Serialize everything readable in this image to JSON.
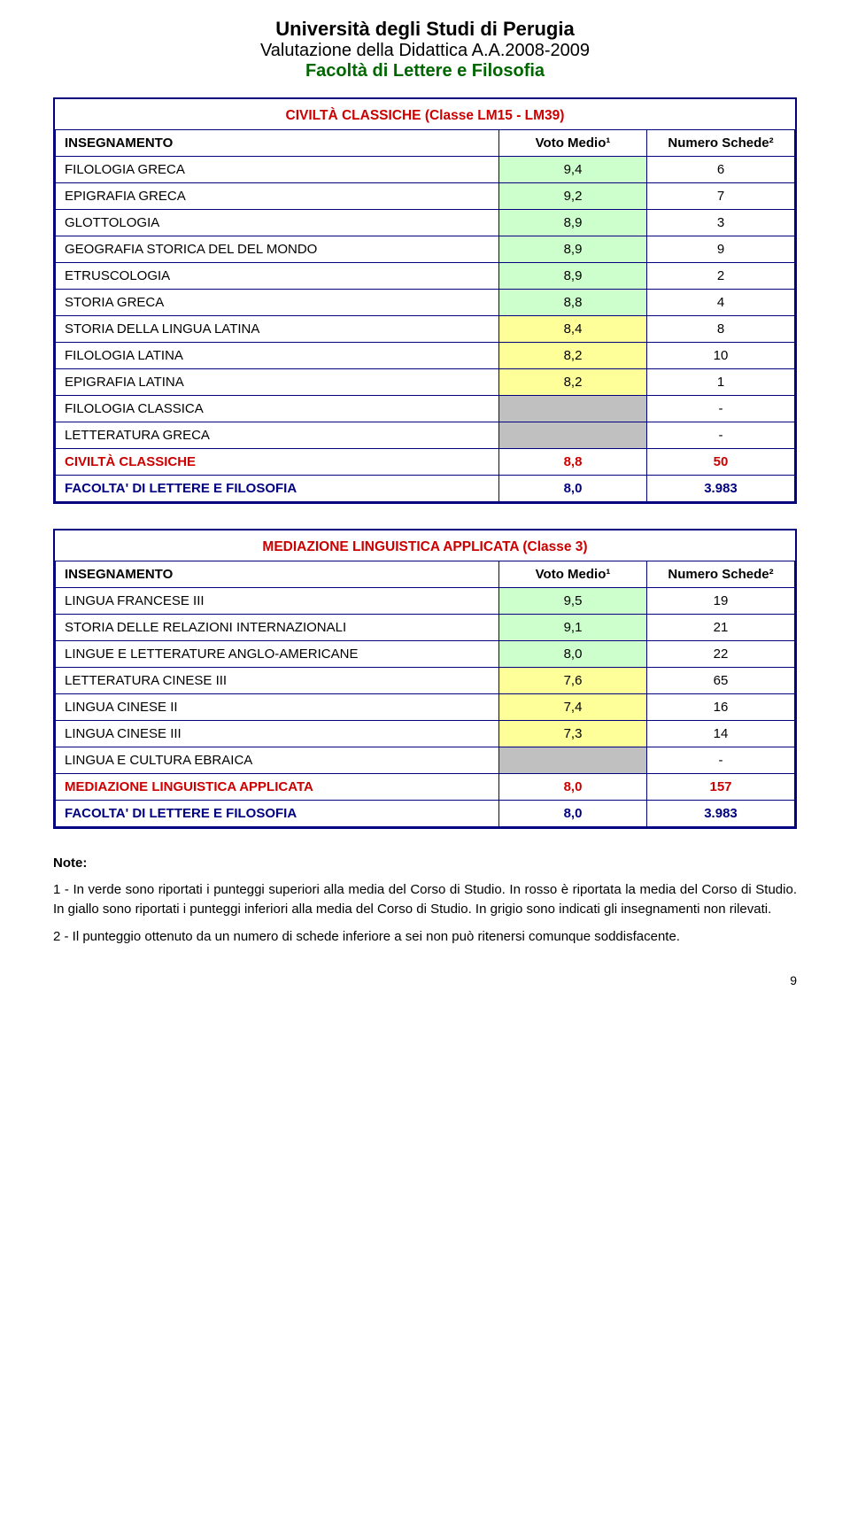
{
  "header": {
    "university": "Università degli Studi di Perugia",
    "evaluation": "Valutazione della Didattica A.A.2008-2009",
    "faculty": "Facoltà di Lettere e Filosofia"
  },
  "colors": {
    "green": "#ccffcc",
    "yellow": "#ffff99",
    "grey": "#c0c0c0",
    "border": "#000080",
    "course_red": "#cc0000",
    "faculty_blue": "#000080"
  },
  "col_headers": {
    "insegnamento": "INSEGNAMENTO",
    "voto": "Voto Medio¹",
    "numero": "Numero Schede²"
  },
  "table1": {
    "title": "CIVILTÀ CLASSICHE (Classe LM15 - LM39)",
    "rows": [
      {
        "name": "FILOLOGIA GRECA",
        "val": "9,4",
        "cnt": "6",
        "bg": "green"
      },
      {
        "name": "EPIGRAFIA GRECA",
        "val": "9,2",
        "cnt": "7",
        "bg": "green"
      },
      {
        "name": "GLOTTOLOGIA",
        "val": "8,9",
        "cnt": "3",
        "bg": "green"
      },
      {
        "name": "GEOGRAFIA STORICA DEL DEL MONDO",
        "val": "8,9",
        "cnt": "9",
        "bg": "green"
      },
      {
        "name": "ETRUSCOLOGIA",
        "val": "8,9",
        "cnt": "2",
        "bg": "green"
      },
      {
        "name": "STORIA GRECA",
        "val": "8,8",
        "cnt": "4",
        "bg": "green"
      },
      {
        "name": "STORIA DELLA LINGUA LATINA",
        "val": "8,4",
        "cnt": "8",
        "bg": "yellow"
      },
      {
        "name": "FILOLOGIA LATINA",
        "val": "8,2",
        "cnt": "10",
        "bg": "yellow"
      },
      {
        "name": "EPIGRAFIA LATINA",
        "val": "8,2",
        "cnt": "1",
        "bg": "yellow"
      },
      {
        "name": "FILOLOGIA CLASSICA",
        "val": "",
        "cnt": "-",
        "bg": "grey"
      },
      {
        "name": "LETTERATURA GRECA",
        "val": "",
        "cnt": "-",
        "bg": "grey"
      }
    ],
    "course_summary": {
      "name": "CIVILTÀ CLASSICHE",
      "val": "8,8",
      "cnt": "50"
    },
    "faculty_summary": {
      "name": "FACOLTA' DI LETTERE E FILOSOFIA",
      "val": "8,0",
      "cnt": "3.983"
    }
  },
  "table2": {
    "title": "MEDIAZIONE LINGUISTICA APPLICATA (Classe 3)",
    "rows": [
      {
        "name": "LINGUA FRANCESE III",
        "val": "9,5",
        "cnt": "19",
        "bg": "green"
      },
      {
        "name": "STORIA DELLE RELAZIONI INTERNAZIONALI",
        "val": "9,1",
        "cnt": "21",
        "bg": "green"
      },
      {
        "name": "LINGUE E LETTERATURE ANGLO-AMERICANE",
        "val": "8,0",
        "cnt": "22",
        "bg": "green"
      },
      {
        "name": "LETTERATURA CINESE III",
        "val": "7,6",
        "cnt": "65",
        "bg": "yellow"
      },
      {
        "name": "LINGUA CINESE II",
        "val": "7,4",
        "cnt": "16",
        "bg": "yellow"
      },
      {
        "name": "LINGUA CINESE III",
        "val": "7,3",
        "cnt": "14",
        "bg": "yellow"
      },
      {
        "name": "LINGUA E CULTURA EBRAICA",
        "val": "",
        "cnt": "-",
        "bg": "grey"
      }
    ],
    "course_summary": {
      "name": "MEDIAZIONE LINGUISTICA APPLICATA",
      "val": "8,0",
      "cnt": "157"
    },
    "faculty_summary": {
      "name": "FACOLTA' DI LETTERE E FILOSOFIA",
      "val": "8,0",
      "cnt": "3.983"
    }
  },
  "notes": {
    "title": "Note:",
    "n1": "1 - In verde sono riportati i punteggi superiori alla media del Corso di Studio. In rosso è riportata la media del Corso di Studio. In giallo sono riportati i punteggi inferiori alla media del Corso di Studio. In grigio sono indicati gli insegnamenti non rilevati.",
    "n2": "2 - Il punteggio ottenuto da un numero di schede inferiore a sei non può ritenersi comunque soddisfacente."
  },
  "page_number": "9"
}
